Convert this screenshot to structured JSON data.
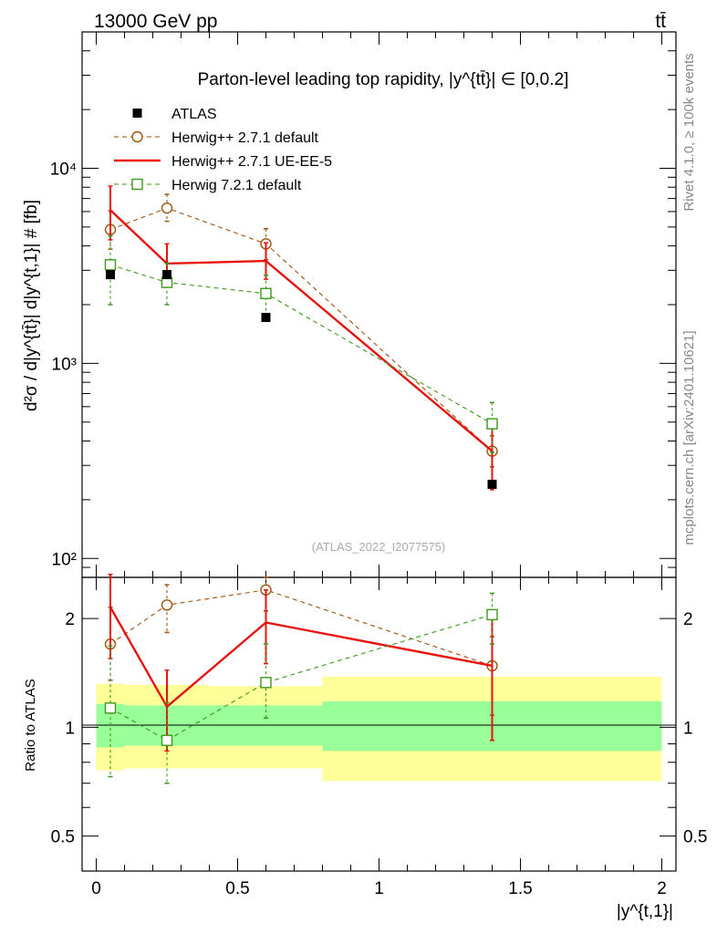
{
  "header": {
    "left_label": "13000 GeV pp",
    "right_label": "tt̄"
  },
  "side_labels": {
    "rivet": "Rivet 4.1.0, ≥ 100k events",
    "mcplots": "mcplots.cern.ch [arXiv:2401.10621]"
  },
  "chart_data": [
    {
      "type": "scatter",
      "panel": "main",
      "title": "Parton-level leading top rapidity, |y^{tt̄}| ∈ [0,0.2]",
      "ylabel": "d²σ / d|y^{tt̄}| d|y^{t,1}| # [fb]",
      "xlabel": "",
      "yscale": "log",
      "ylim": [
        80,
        50000
      ],
      "xlim": [
        -0.05,
        2.05
      ],
      "ytick_labels": [
        "10²",
        "10³",
        "10⁴"
      ],
      "ytick_values": [
        100,
        1000,
        10000
      ],
      "watermark": "(ATLAS_2022_I2077575)",
      "legend_position": "top-left",
      "x": [
        0.05,
        0.25,
        0.6,
        1.4
      ],
      "series": [
        {
          "name": "ATLAS",
          "color": "#000000",
          "marker": "filled-square",
          "values": [
            2850,
            2850,
            1720,
            240
          ],
          "err_up": [
            0,
            0,
            0,
            0
          ],
          "err_down": [
            0,
            0,
            0,
            0
          ]
        },
        {
          "name": "Herwig++ 2.7.1 default",
          "color": "#a0520a",
          "marker": "open-circle",
          "line": "dashed",
          "values": [
            4850,
            6250,
            4100,
            355
          ],
          "err_up": [
            1200,
            1100,
            800,
            70
          ],
          "err_down": [
            1000,
            900,
            700,
            60
          ]
        },
        {
          "name": "Herwig++ 2.7.1 UE-EE-5",
          "color": "#e8130e",
          "marker": "none",
          "line": "solid",
          "values": [
            6100,
            3250,
            3350,
            355
          ],
          "err_up": [
            2000,
            850,
            800,
            130
          ],
          "err_down": [
            1800,
            700,
            650,
            130
          ]
        },
        {
          "name": "Herwig 7.2.1 default",
          "color": "#3a9a1a",
          "marker": "open-square",
          "line": "dashed",
          "values": [
            3200,
            2600,
            2280,
            490
          ],
          "err_up": [
            1300,
            650,
            550,
            140
          ],
          "err_down": [
            1200,
            600,
            550,
            140
          ]
        }
      ]
    },
    {
      "type": "scatter",
      "panel": "ratio",
      "ylabel": "Ratio to ATLAS",
      "xlabel": "|y^{t,1}|",
      "yscale": "log",
      "ylim": [
        0.4,
        2.6
      ],
      "xlim": [
        -0.05,
        2.05
      ],
      "ytick_labels": [
        "0.5",
        "1",
        "2"
      ],
      "ytick_values": [
        0.5,
        1,
        2
      ],
      "xtick_labels": [
        "0",
        "0.5",
        "1",
        "1.5",
        "2"
      ],
      "xtick_values": [
        0,
        0.5,
        1,
        1.5,
        2
      ],
      "bins": [
        [
          0.0,
          0.1
        ],
        [
          0.1,
          0.4
        ],
        [
          0.4,
          0.8
        ],
        [
          0.8,
          2.0
        ]
      ],
      "band_stat": [
        [
          0.88,
          1.16
        ],
        [
          0.89,
          1.15
        ],
        [
          0.89,
          1.15
        ],
        [
          0.86,
          1.18
        ]
      ],
      "band_total": [
        [
          0.76,
          1.32
        ],
        [
          0.77,
          1.31
        ],
        [
          0.77,
          1.3
        ],
        [
          0.71,
          1.38
        ]
      ],
      "band_colors": {
        "stat": "#99ff99",
        "total": "#ffff99"
      },
      "x": [
        0.05,
        0.25,
        0.6,
        1.4
      ],
      "series": [
        {
          "name": "Herwig++ 2.7.1 default",
          "color": "#a0520a",
          "marker": "open-circle",
          "line": "dashed",
          "values": [
            1.7,
            2.18,
            2.4,
            1.48
          ],
          "err_up": [
            0.45,
            0.3,
            0.2,
            0.3
          ],
          "err_down": [
            0.35,
            0.35,
            0.3,
            0.4
          ]
        },
        {
          "name": "Herwig++ 2.7.1 UE-EE-5",
          "color": "#e8130e",
          "marker": "none",
          "line": "solid",
          "values": [
            2.15,
            1.14,
            1.95,
            1.48
          ],
          "err_up": [
            0.5,
            0.3,
            0.45,
            0.55
          ],
          "err_down": [
            0.6,
            0.28,
            0.45,
            0.56
          ]
        },
        {
          "name": "Herwig 7.2.1 default",
          "color": "#3a9a1a",
          "marker": "open-square",
          "line": "dashed",
          "values": [
            1.13,
            0.92,
            1.33,
            2.05
          ],
          "err_up": [
            0.55,
            0.25,
            0.37,
            0.3
          ],
          "err_down": [
            0.4,
            0.22,
            0.27,
            0.35
          ]
        }
      ]
    }
  ]
}
